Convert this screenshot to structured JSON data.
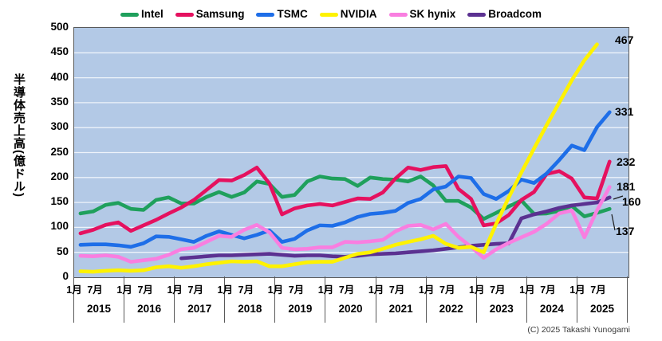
{
  "chart_data": {
    "type": "line",
    "title": "",
    "xlabel": "",
    "ylabel": "半導体売上高(億ドル)",
    "ylim": [
      0,
      500
    ],
    "y_ticks": [
      0,
      50,
      100,
      150,
      200,
      250,
      300,
      350,
      400,
      450,
      500
    ],
    "grid": true,
    "legend_position": "top",
    "plot_bg_color": "#b3c9e6",
    "gridline_color": "#eef3fa",
    "x_axis": {
      "years": [
        "2015",
        "2016",
        "2017",
        "2018",
        "2019",
        "2020",
        "2021",
        "2022",
        "2023",
        "2024",
        "2025"
      ],
      "month_labels": [
        "1月",
        "7月"
      ]
    },
    "categories": [
      "2015Q1",
      "2015Q2",
      "2015Q3",
      "2015Q4",
      "2016Q1",
      "2016Q2",
      "2016Q3",
      "2016Q4",
      "2017Q1",
      "2017Q2",
      "2017Q3",
      "2017Q4",
      "2018Q1",
      "2018Q2",
      "2018Q3",
      "2018Q4",
      "2019Q1",
      "2019Q2",
      "2019Q3",
      "2019Q4",
      "2020Q1",
      "2020Q2",
      "2020Q3",
      "2020Q4",
      "2021Q1",
      "2021Q2",
      "2021Q3",
      "2021Q4",
      "2022Q1",
      "2022Q2",
      "2022Q3",
      "2022Q4",
      "2023Q1",
      "2023Q2",
      "2023Q3",
      "2023Q4",
      "2024Q1",
      "2024Q2",
      "2024Q3",
      "2024Q4",
      "2025Q1",
      "2025Q2",
      "2025Q3"
    ],
    "series": [
      {
        "name": "Intel",
        "color": "#1fa05c",
        "values": [
          128,
          132,
          145,
          149,
          137,
          135,
          155,
          160,
          148,
          148,
          161,
          171,
          161,
          170,
          192,
          187,
          161,
          165,
          192,
          202,
          198,
          197,
          183,
          200,
          197,
          196,
          192,
          202,
          184,
          153,
          153,
          140,
          117,
          129,
          142,
          154,
          127,
          128,
          133,
          143,
          122,
          129,
          137
        ]
      },
      {
        "name": "Samsung",
        "color": "#e5115f",
        "values": [
          88,
          95,
          105,
          110,
          93,
          104,
          115,
          128,
          140,
          155,
          175,
          195,
          194,
          205,
          220,
          188,
          126,
          138,
          144,
          147,
          144,
          151,
          158,
          157,
          170,
          198,
          220,
          215,
          221,
          223,
          177,
          157,
          104,
          108,
          125,
          155,
          171,
          207,
          213,
          198,
          160,
          158,
          232
        ]
      },
      {
        "name": "TSMC",
        "color": "#1e6ee8",
        "values": [
          65,
          66,
          66,
          64,
          61,
          68,
          82,
          81,
          76,
          71,
          83,
          92,
          85,
          78,
          85,
          94,
          71,
          77,
          94,
          104,
          103,
          110,
          121,
          127,
          129,
          133,
          149,
          157,
          176,
          182,
          202,
          199,
          167,
          157,
          173,
          196,
          189,
          208,
          235,
          264,
          255,
          301,
          331
        ]
      },
      {
        "name": "NVIDIA",
        "color": "#fef200",
        "values": [
          12,
          11,
          13,
          14,
          13,
          14,
          20,
          22,
          19,
          22,
          26,
          29,
          32,
          31,
          32,
          22,
          22,
          26,
          30,
          31,
          31,
          39,
          47,
          50,
          57,
          65,
          71,
          76,
          83,
          67,
          59,
          61,
          50,
          107,
          160,
          210,
          258,
          305,
          350,
          395,
          435,
          467,
          null
        ]
      },
      {
        "name": "SK hynix",
        "color": "#f97ee0",
        "values": [
          43,
          42,
          44,
          41,
          31,
          34,
          37,
          45,
          56,
          59,
          71,
          83,
          81,
          95,
          105,
          90,
          59,
          56,
          57,
          60,
          60,
          71,
          70,
          72,
          75,
          92,
          103,
          105,
          96,
          107,
          81,
          61,
          39,
          56,
          69,
          80,
          91,
          107,
          128,
          134,
          80,
          134,
          181
        ]
      },
      {
        "name": "Broadcom",
        "color": "#5b3191",
        "values": [
          null,
          null,
          null,
          null,
          null,
          null,
          null,
          null,
          38,
          40,
          42,
          44,
          44,
          45,
          46,
          47,
          45,
          43,
          44,
          44,
          42,
          41,
          43,
          46,
          47,
          48,
          50,
          52,
          54,
          57,
          60,
          63,
          65,
          67,
          68,
          118,
          126,
          132,
          139,
          144,
          147,
          150,
          160
        ]
      }
    ],
    "end_labels": [
      {
        "series": "NVIDIA",
        "text": "467"
      },
      {
        "series": "TSMC",
        "text": "331"
      },
      {
        "series": "Samsung",
        "text": "232"
      },
      {
        "series": "SK hynix",
        "text": "181"
      },
      {
        "series": "Broadcom",
        "text": "160"
      },
      {
        "series": "Intel",
        "text": "137"
      }
    ]
  },
  "footer": {
    "copyright": "(C) 2025 Takashi Yunogami"
  }
}
